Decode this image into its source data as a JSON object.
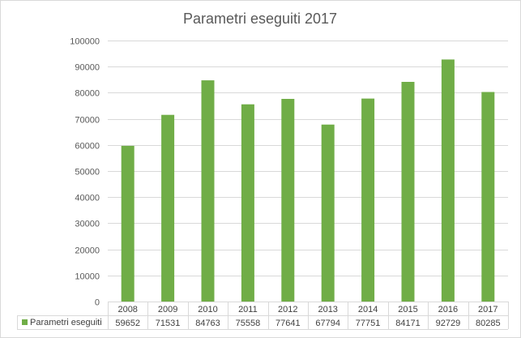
{
  "chart_data": {
    "type": "bar",
    "title": "Parametri eseguiti 2017",
    "categories": [
      "2008",
      "2009",
      "2010",
      "2011",
      "2012",
      "2013",
      "2014",
      "2015",
      "2016",
      "2017"
    ],
    "series": [
      {
        "name": "Parametri eseguiti",
        "color": "#70ad47",
        "values": [
          59652,
          71531,
          84763,
          75558,
          77641,
          67794,
          77751,
          84171,
          92729,
          80285
        ]
      }
    ],
    "ylim": [
      0,
      100000
    ],
    "yticks": [
      "0",
      "10000",
      "20000",
      "30000",
      "40000",
      "50000",
      "60000",
      "70000",
      "80000",
      "90000",
      "100000"
    ],
    "grid": true,
    "legend": "data-table"
  }
}
